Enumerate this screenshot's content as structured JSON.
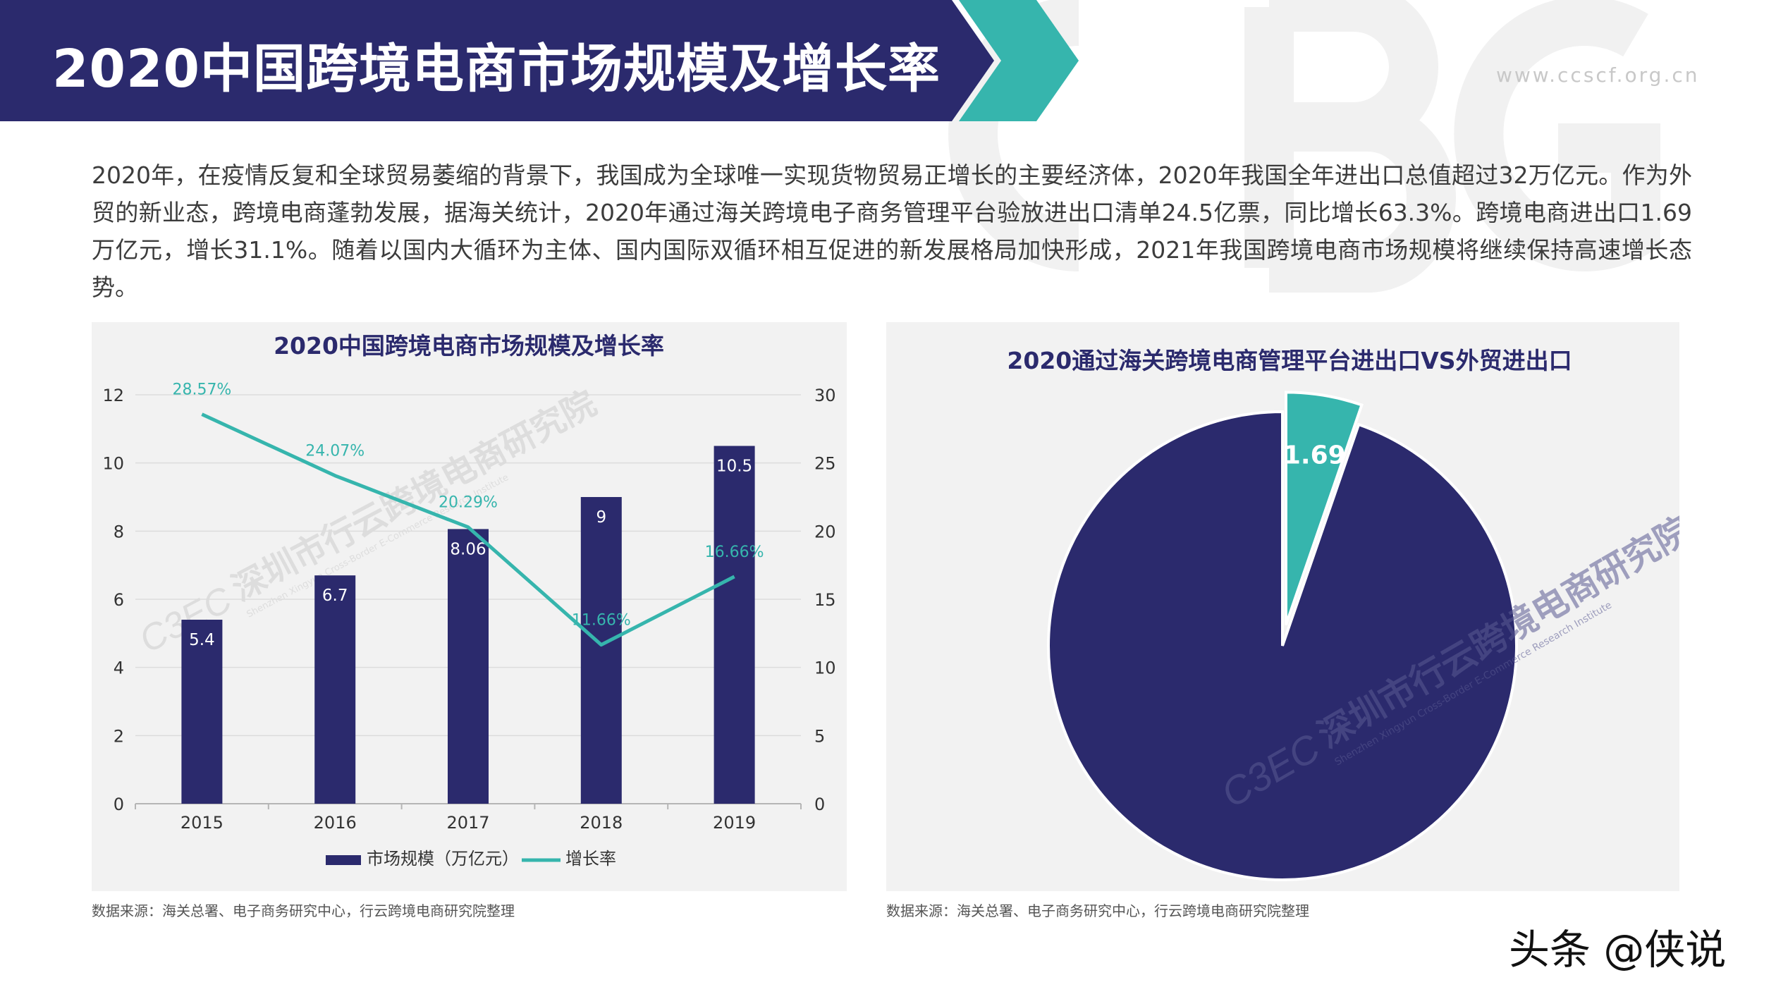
{
  "header": {
    "title": "2020中国跨境电商市场规模及增长率",
    "url": "www.ccscf.org.cn",
    "bg_color": "#2b2a6d",
    "accent_color": "#36b5ad"
  },
  "intro_text": "2020年，在疫情反复和全球贸易萎缩的背景下，我国成为全球唯一实现货物贸易正增长的主要经济体，2020年我国全年进出口总值超过32万亿元。作为外贸的新业态，跨境电商蓬勃发展，据海关统计，2020年通过海关跨境电子商务管理平台验放进出口清单24.5亿票，同比增长63.3%。跨境电商进出口1.69万亿元，增长31.1%。随着以国内大循环为主体、国内国际双循环相互促进的新发展格局加快形成，2021年我国跨境电商市场规模将继续保持高速增长态势。",
  "watermark": {
    "text": "深圳市行云跨境电商研究院",
    "sub": "Shenzhen Xingyun Cross-Border E-Commerce Research Institute",
    "logo": "C3EC"
  },
  "chart_data": [
    {
      "type": "bar",
      "title": "2020中国跨境电商市场规模及增长率",
      "categories": [
        "2015",
        "2016",
        "2017",
        "2018",
        "2019"
      ],
      "series": [
        {
          "name": "市场规模（万亿元）",
          "type": "bar",
          "axis": "left",
          "values": [
            5.4,
            6.7,
            8.06,
            9,
            10.5
          ],
          "labels": [
            "5.4",
            "6.7",
            "8.06",
            "9",
            "10.5"
          ],
          "color": "#2b2a6d"
        },
        {
          "name": "增长率",
          "type": "line",
          "axis": "right",
          "values": [
            28.57,
            24.07,
            20.29,
            11.66,
            16.66
          ],
          "labels": [
            "28.57%",
            "24.07%",
            "20.29%",
            "11.66%",
            "16.66%"
          ],
          "color": "#36b5ad"
        }
      ],
      "ylim_left": [
        0,
        12
      ],
      "yticks_left": [
        "0",
        "2",
        "4",
        "6",
        "8",
        "10",
        "12"
      ],
      "ylim_right": [
        0,
        30
      ],
      "yticks_right": [
        "0",
        "5",
        "10",
        "15",
        "20",
        "25",
        "30"
      ],
      "grid": true,
      "legend": "bottom"
    },
    {
      "type": "pie",
      "title": "2020通过海关跨境电商管理平台进出口VS外贸进出口",
      "slices": [
        {
          "value": 1.69,
          "label": "1.69",
          "color": "#36b5ad",
          "exploded": true
        },
        {
          "value": 30.31,
          "label": "",
          "color": "#2b2a6d",
          "exploded": false
        }
      ]
    }
  ],
  "sources": {
    "left": "数据来源：海关总署、电子商务研究中心，行云跨境电商研究院整理",
    "right": "数据来源：海关总署、电子商务研究中心，行云跨境电商研究院整理"
  },
  "toutiao": "头条 @侠说"
}
